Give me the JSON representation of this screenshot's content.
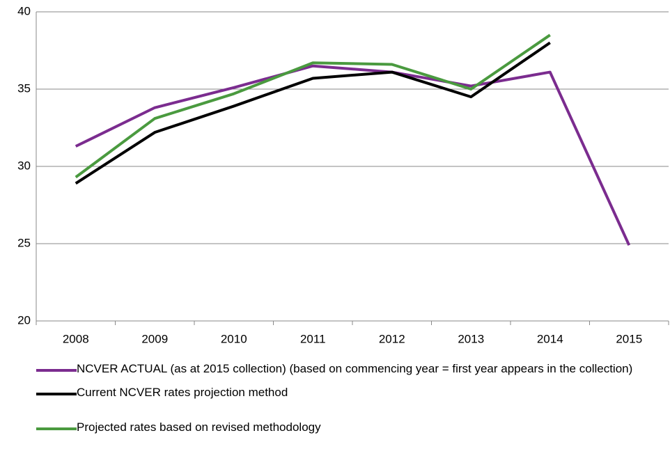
{
  "chart_data": {
    "type": "line",
    "categories": [
      "2008",
      "2009",
      "2010",
      "2011",
      "2012",
      "2013",
      "2014",
      "2015"
    ],
    "series": [
      {
        "name": "NCVER ACTUAL (as at 2015 collection) (based on commencing year = first year appears in the collection)",
        "color": "#7b2c8f",
        "values": [
          31.3,
          33.8,
          35.1,
          36.5,
          36.1,
          35.2,
          36.1,
          24.9
        ]
      },
      {
        "name": "Current NCVER rates projection method",
        "color": "#000000",
        "values": [
          28.9,
          32.2,
          33.9,
          35.7,
          36.1,
          34.5,
          38.0,
          null
        ]
      },
      {
        "name": "Projected rates based on revised methodology",
        "color": "#4a9a3f",
        "values": [
          29.3,
          33.1,
          34.7,
          36.7,
          36.6,
          35.0,
          38.5,
          null
        ]
      }
    ],
    "ylim": [
      20,
      40
    ],
    "yticks": [
      20,
      25,
      30,
      35,
      40
    ],
    "grid": true,
    "legend": "bottom"
  }
}
